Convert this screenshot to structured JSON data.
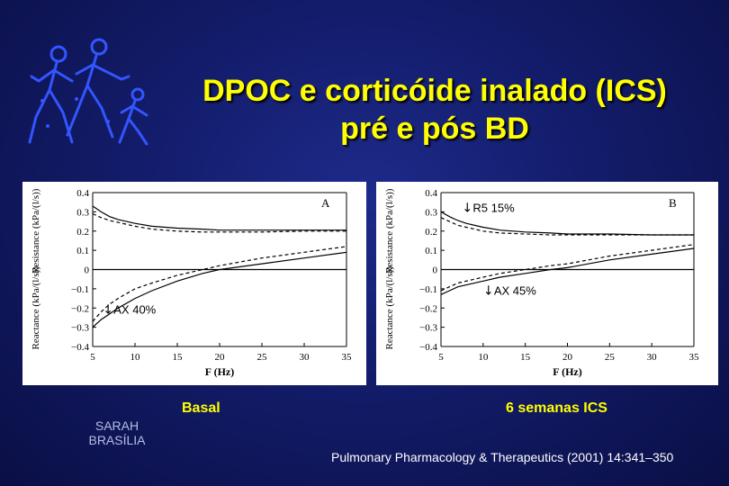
{
  "title": {
    "line1": "DPOC e corticóide inalado (ICS)",
    "line2": "pré e pós BD"
  },
  "logo": {
    "icon": "running-family-icon",
    "color": "#3355ff"
  },
  "panel_labels": {
    "basal": "Basal",
    "ics": "6 semanas ICS"
  },
  "footer": {
    "institution_line1": "SARAH",
    "institution_line2": "BRASÍLIA",
    "citation": "Pulmonary Pharmacology & Therapeutics (2001) 14:341–350"
  },
  "colors": {
    "title": "#ffff00",
    "background": "#131c6a",
    "annotation": "#000000"
  },
  "chart_data": [
    {
      "type": "line",
      "panel_letter": "A",
      "xlabel": "F (Hz)",
      "ylabel_top": "Resistance (kPa/(l/s))",
      "ylabel_bottom": "Reactance (kPa/(l/s))",
      "xlim": [
        5,
        35
      ],
      "ylim": [
        -0.4,
        0.4
      ],
      "x_ticks": [
        5,
        10,
        15,
        20,
        25,
        30,
        35
      ],
      "y_ticks": [
        0.4,
        0.3,
        0.2,
        0.1,
        0,
        -0.1,
        -0.2,
        -0.3,
        -0.4
      ],
      "y_tick_labels": [
        "0.4",
        "0.3",
        "0.2",
        "0.1",
        "0",
        "−0.1",
        "−0.2",
        "−0.3",
        "−0.4"
      ],
      "grid": false,
      "annotations": [
        {
          "text": "AX 40%",
          "arrow": "down",
          "x": 6.2,
          "y": -0.23
        }
      ],
      "series": [
        {
          "style": "solid",
          "x": [
            5,
            6,
            7,
            8,
            10,
            12,
            15,
            18,
            20,
            25,
            30,
            35
          ],
          "y": [
            0.33,
            0.3,
            0.275,
            0.26,
            0.24,
            0.225,
            0.215,
            0.21,
            0.205,
            0.205,
            0.205,
            0.205
          ]
        },
        {
          "style": "dashed",
          "x": [
            5,
            6,
            7,
            8,
            10,
            12,
            15,
            18,
            20,
            25,
            30,
            35
          ],
          "y": [
            0.29,
            0.27,
            0.255,
            0.245,
            0.225,
            0.21,
            0.2,
            0.195,
            0.195,
            0.195,
            0.2,
            0.2
          ]
        },
        {
          "style": "solid",
          "x": [
            5,
            6,
            7,
            8,
            10,
            12,
            15,
            18,
            20,
            25,
            30,
            35
          ],
          "y": [
            -0.3,
            -0.26,
            -0.23,
            -0.2,
            -0.15,
            -0.11,
            -0.06,
            -0.02,
            0.0,
            0.03,
            0.06,
            0.09
          ]
        },
        {
          "style": "dashed",
          "x": [
            5,
            6,
            7,
            8,
            10,
            12,
            15,
            18,
            20,
            25,
            30,
            35
          ],
          "y": [
            -0.27,
            -0.22,
            -0.18,
            -0.15,
            -0.1,
            -0.07,
            -0.03,
            0.0,
            0.02,
            0.06,
            0.09,
            0.12
          ]
        },
        {
          "style": "solid",
          "x": [
            5,
            35
          ],
          "y": [
            0,
            0
          ]
        }
      ]
    },
    {
      "type": "line",
      "panel_letter": "B",
      "xlabel": "F (Hz)",
      "ylabel_top": "Resistance (kPa/(l/s))",
      "ylabel_bottom": "Reactance (kPa/(l/s))",
      "xlim": [
        5,
        35
      ],
      "ylim": [
        -0.4,
        0.4
      ],
      "x_ticks": [
        5,
        10,
        15,
        20,
        25,
        30,
        35
      ],
      "y_ticks": [
        0.4,
        0.3,
        0.2,
        0.1,
        0,
        -0.1,
        -0.2,
        -0.3,
        -0.4
      ],
      "y_tick_labels": [
        "0.4",
        "0.3",
        "0.2",
        "0.1",
        "0",
        "−0.1",
        "−0.2",
        "−0.3",
        "−0.4"
      ],
      "grid": false,
      "annotations": [
        {
          "text": "R5 15%",
          "arrow": "down",
          "x": 7.5,
          "y": 0.3
        },
        {
          "text": "AX 45%",
          "arrow": "down",
          "x": 10,
          "y": -0.13
        }
      ],
      "series": [
        {
          "style": "solid",
          "x": [
            5,
            6,
            7,
            8,
            10,
            12,
            15,
            18,
            20,
            25,
            30,
            35
          ],
          "y": [
            0.3,
            0.275,
            0.255,
            0.24,
            0.22,
            0.205,
            0.195,
            0.19,
            0.185,
            0.185,
            0.18,
            0.18
          ]
        },
        {
          "style": "dashed",
          "x": [
            5,
            6,
            7,
            8,
            10,
            12,
            15,
            18,
            20,
            25,
            30,
            35
          ],
          "y": [
            0.27,
            0.25,
            0.23,
            0.22,
            0.2,
            0.19,
            0.185,
            0.18,
            0.18,
            0.18,
            0.18,
            0.18
          ]
        },
        {
          "style": "solid",
          "x": [
            5,
            6,
            7,
            8,
            10,
            12,
            15,
            18,
            20,
            25,
            30,
            35
          ],
          "y": [
            -0.13,
            -0.11,
            -0.09,
            -0.08,
            -0.06,
            -0.04,
            -0.02,
            0.0,
            0.01,
            0.05,
            0.08,
            0.11
          ]
        },
        {
          "style": "dashed",
          "x": [
            5,
            6,
            7,
            8,
            10,
            12,
            15,
            18,
            20,
            25,
            30,
            35
          ],
          "y": [
            -0.11,
            -0.09,
            -0.07,
            -0.06,
            -0.04,
            -0.02,
            0.0,
            0.02,
            0.03,
            0.07,
            0.1,
            0.13
          ]
        },
        {
          "style": "solid",
          "x": [
            5,
            35
          ],
          "y": [
            0,
            0
          ]
        }
      ]
    }
  ]
}
